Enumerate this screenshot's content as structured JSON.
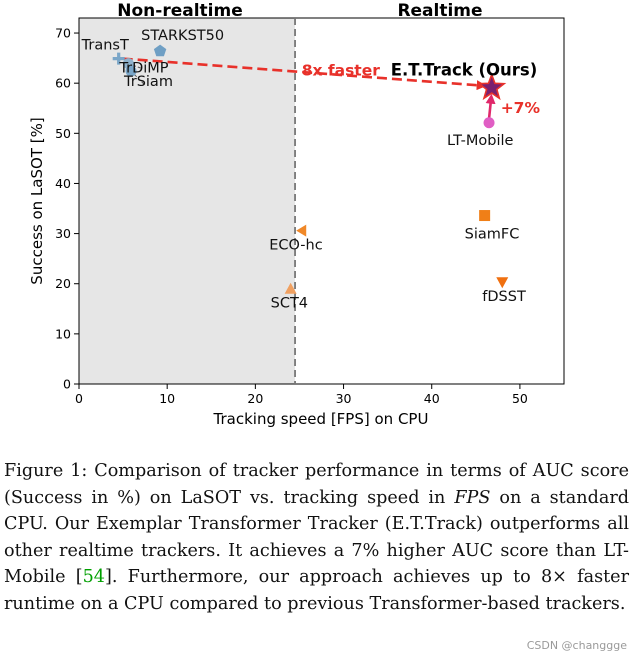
{
  "chart_data": {
    "type": "scatter",
    "title": "",
    "xlabel": "Tracking speed [FPS] on CPU",
    "ylabel": "Success on LaSOT [%]",
    "xlim": [
      0,
      55
    ],
    "ylim": [
      0,
      73
    ],
    "xticks": [
      0,
      10,
      20,
      30,
      40,
      50
    ],
    "yticks": [
      0,
      10,
      20,
      30,
      40,
      50,
      60,
      70
    ],
    "realtime_threshold": 24.5,
    "region_labels": {
      "left": "Non-realtime",
      "right": "Realtime"
    },
    "points": [
      {
        "label": "TransT",
        "x": 4.5,
        "y": 64.9,
        "color": "#7aa6c8",
        "shape": "plus"
      },
      {
        "label": "STARKST50",
        "x": 9.2,
        "y": 66.4,
        "color": "#6f9fc4",
        "shape": "pentagon"
      },
      {
        "label": "TrDiMP",
        "x": 5.6,
        "y": 63.9,
        "color": "#8fb2cc",
        "shape": "circle"
      },
      {
        "label": "TrSiam",
        "x": 5.9,
        "y": 62.4,
        "color": "#7aa6c8",
        "shape": "circle"
      },
      {
        "label": "E.T.Track (Ours)",
        "x": 46.8,
        "y": 59.1,
        "color": "#7a1f6f",
        "shape": "star"
      },
      {
        "label": "LT-Mobile",
        "x": 46.5,
        "y": 52.1,
        "color": "#e05ec4",
        "shape": "circle"
      },
      {
        "label": "SiamFC",
        "x": 46.0,
        "y": 33.6,
        "color": "#f07f17",
        "shape": "square"
      },
      {
        "label": "ECO-hc",
        "x": 25.2,
        "y": 30.6,
        "color": "#f08828",
        "shape": "triangle-left"
      },
      {
        "label": "SCT4",
        "x": 24.0,
        "y": 19.0,
        "color": "#f0a060",
        "shape": "triangle-up"
      },
      {
        "label": "fDSST",
        "x": 48.0,
        "y": 20.3,
        "color": "#f07010",
        "shape": "triangle-down"
      }
    ],
    "annotations": {
      "speedup": "8x faster",
      "gain": "+7%",
      "accent_color": "#e8312a",
      "gain_color": "#e0286a"
    }
  },
  "caption": {
    "fig_label": "Figure 1:",
    "p1": " Comparison of tracker performance in terms of AUC score (Success in %) on LaSOT vs. tracking speed in ",
    "fps": "FPS",
    "p2": " on a standard CPU. Our Exemplar Transformer Tracker (E.T.Track) outperforms all other realtime trackers. It achieves a 7% higher AUC score than LT-Mobile [",
    "ref": "54",
    "p3": "]. Furthermore, our approach achieves up to 8× faster runtime on a CPU compared to previous Transformer-based trackers."
  },
  "watermark": "CSDN @changgge"
}
